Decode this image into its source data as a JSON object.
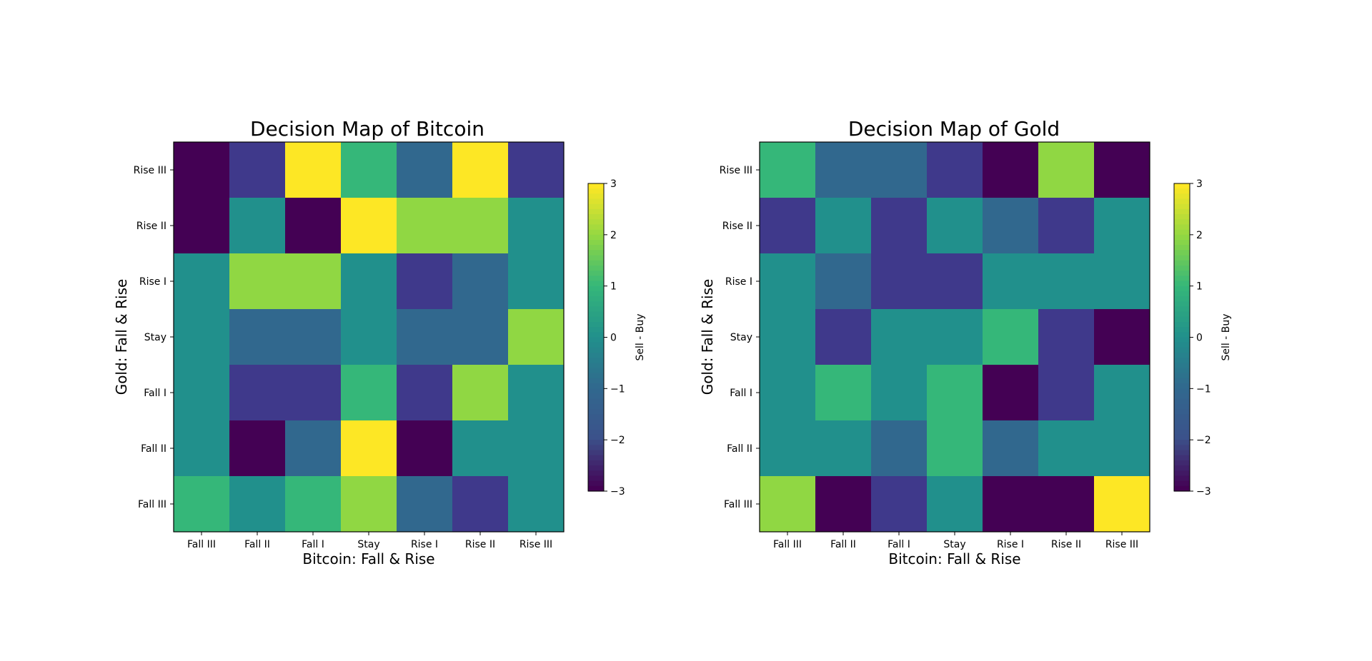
{
  "chart_data": [
    {
      "type": "heatmap",
      "title": "Decision Map of Bitcoin",
      "xlabel": "Bitcoin: Fall & Rise",
      "ylabel": "Gold: Fall & Rise",
      "x_categories": [
        "Fall III",
        "Fall II",
        "Fall I",
        "Stay",
        "Rise I",
        "Rise II",
        "Rise III"
      ],
      "y_categories": [
        "Rise III",
        "Rise II",
        "Rise I",
        "Stay",
        "Fall I",
        "Fall II",
        "Fall III"
      ],
      "values": [
        [
          -3,
          -2,
          3,
          1,
          -1,
          3,
          -2
        ],
        [
          -3,
          0,
          -3,
          3,
          2,
          2,
          0
        ],
        [
          0,
          2,
          2,
          0,
          -2,
          -1,
          0
        ],
        [
          0,
          -1,
          -1,
          0,
          -1,
          -1,
          2
        ],
        [
          0,
          -2,
          -2,
          1,
          -2,
          2,
          0
        ],
        [
          0,
          -3,
          -1,
          3,
          -3,
          0,
          0
        ],
        [
          1,
          0,
          1,
          2,
          -1,
          -2,
          0
        ]
      ],
      "colorbar": {
        "label": "Sell - Buy",
        "ticks": [
          "3",
          "2",
          "1",
          "0",
          "−1",
          "−2",
          "−3"
        ],
        "range": [
          -3,
          3
        ],
        "colormap": "viridis"
      }
    },
    {
      "type": "heatmap",
      "title": "Decision Map of Gold",
      "xlabel": "Bitcoin: Fall & Rise",
      "ylabel": "Gold: Fall & Rise",
      "x_categories": [
        "Fall III",
        "Fall II",
        "Fall I",
        "Stay",
        "Rise I",
        "Rise II",
        "Rise III"
      ],
      "y_categories": [
        "Rise III",
        "Rise II",
        "Rise I",
        "Stay",
        "Fall I",
        "Fall II",
        "Fall III"
      ],
      "values": [
        [
          1,
          -1,
          -1,
          -2,
          -3,
          2,
          -3
        ],
        [
          -2,
          0,
          -2,
          0,
          -1,
          -2,
          0
        ],
        [
          0,
          -1,
          -2,
          -2,
          0,
          0,
          0
        ],
        [
          0,
          -2,
          0,
          0,
          1,
          -2,
          -3
        ],
        [
          0,
          1,
          0,
          1,
          -3,
          -2,
          0
        ],
        [
          0,
          0,
          -1,
          1,
          -1,
          0,
          0
        ],
        [
          2,
          -3,
          -2,
          0,
          -3,
          -3,
          3
        ]
      ],
      "colorbar": {
        "label": "Sell - Buy",
        "ticks": [
          "3",
          "2",
          "1",
          "0",
          "−1",
          "−2",
          "−3"
        ],
        "range": [
          -3,
          3
        ],
        "colormap": "viridis"
      }
    }
  ]
}
